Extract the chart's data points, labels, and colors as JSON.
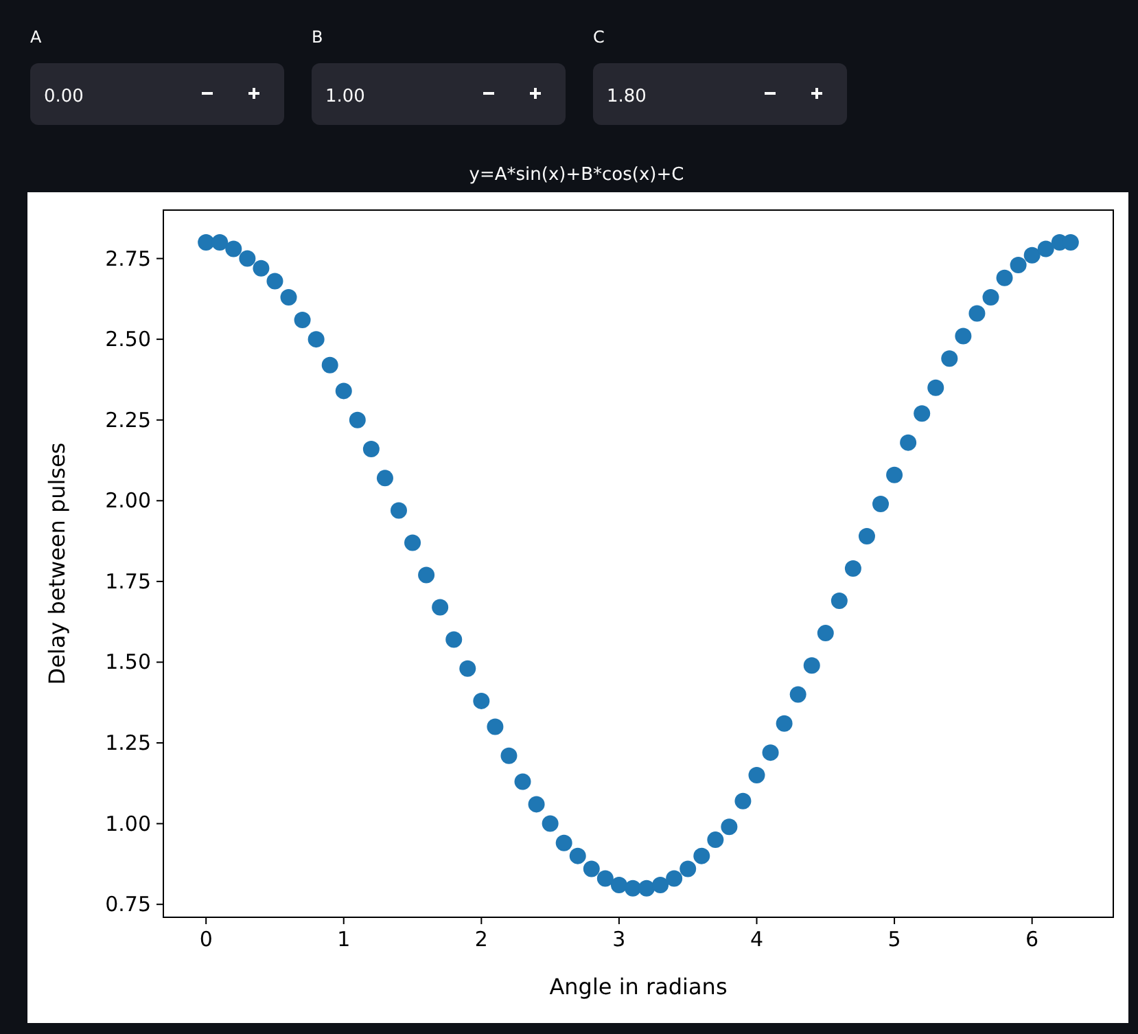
{
  "chart_data": {
    "type": "scatter",
    "title": "y=A*sin(x)+B*cos(x)+C",
    "xlabel": "Angle in radians",
    "ylabel": "Delay between pulses",
    "annotations": [
      "A",
      "0.00",
      "B",
      "1.00",
      "C",
      "1.80"
    ],
    "x": [
      0,
      0.1,
      0.2,
      0.3,
      0.4,
      0.5,
      0.6,
      0.7,
      0.8,
      0.9,
      1.0,
      1.1,
      1.2,
      1.3,
      1.4,
      1.5,
      1.6,
      1.7,
      1.8,
      1.9,
      2.0,
      2.1,
      2.2,
      2.3,
      2.4,
      2.5,
      2.6,
      2.7,
      2.8,
      2.9,
      3.0,
      3.1,
      3.2,
      3.3,
      3.4,
      3.5,
      3.6,
      3.7,
      3.8,
      3.9,
      4.0,
      4.1,
      4.2,
      4.3,
      4.4,
      4.5,
      4.6,
      4.7,
      4.8,
      4.9,
      5.0,
      5.1,
      5.2,
      5.3,
      5.4,
      5.5,
      5.6,
      5.7,
      5.8,
      5.9,
      6.0,
      6.1,
      6.2,
      6.28
    ],
    "series": [
      {
        "color": "#1f77b4",
        "values": [
          2.8,
          2.8,
          2.78,
          2.75,
          2.72,
          2.68,
          2.63,
          2.56,
          2.5,
          2.42,
          2.34,
          2.25,
          2.16,
          2.07,
          1.97,
          1.87,
          1.77,
          1.67,
          1.57,
          1.48,
          1.38,
          1.3,
          1.21,
          1.13,
          1.06,
          1.0,
          0.94,
          0.9,
          0.86,
          0.83,
          0.81,
          0.8,
          0.8,
          0.81,
          0.83,
          0.86,
          0.9,
          0.95,
          0.99,
          1.07,
          1.15,
          1.22,
          1.31,
          1.4,
          1.49,
          1.59,
          1.69,
          1.79,
          1.89,
          1.99,
          2.08,
          2.18,
          2.27,
          2.35,
          2.44,
          2.51,
          2.58,
          2.63,
          2.69,
          2.73,
          2.76,
          2.78,
          2.8,
          2.8
        ]
      }
    ],
    "marker": "circle",
    "xlim": [
      -0.31,
      6.59
    ],
    "xticks": [
      0,
      1,
      2,
      3,
      4,
      5,
      6
    ],
    "ylim": [
      0.71,
      2.9
    ],
    "yticks": [
      {
        "value": 0.75,
        "label": "0.75"
      },
      {
        "value": 1,
        "label": "1.00"
      },
      {
        "value": 1.25,
        "label": "1.25"
      },
      {
        "value": 1.5,
        "label": "1.50"
      },
      {
        "value": 1.75,
        "label": "1.75"
      },
      {
        "value": 2,
        "label": "2.00"
      },
      {
        "value": 2.25,
        "label": "2.25"
      },
      {
        "value": 2.5,
        "label": "2.50"
      },
      {
        "value": 2.75,
        "label": "2.75"
      }
    ]
  }
}
